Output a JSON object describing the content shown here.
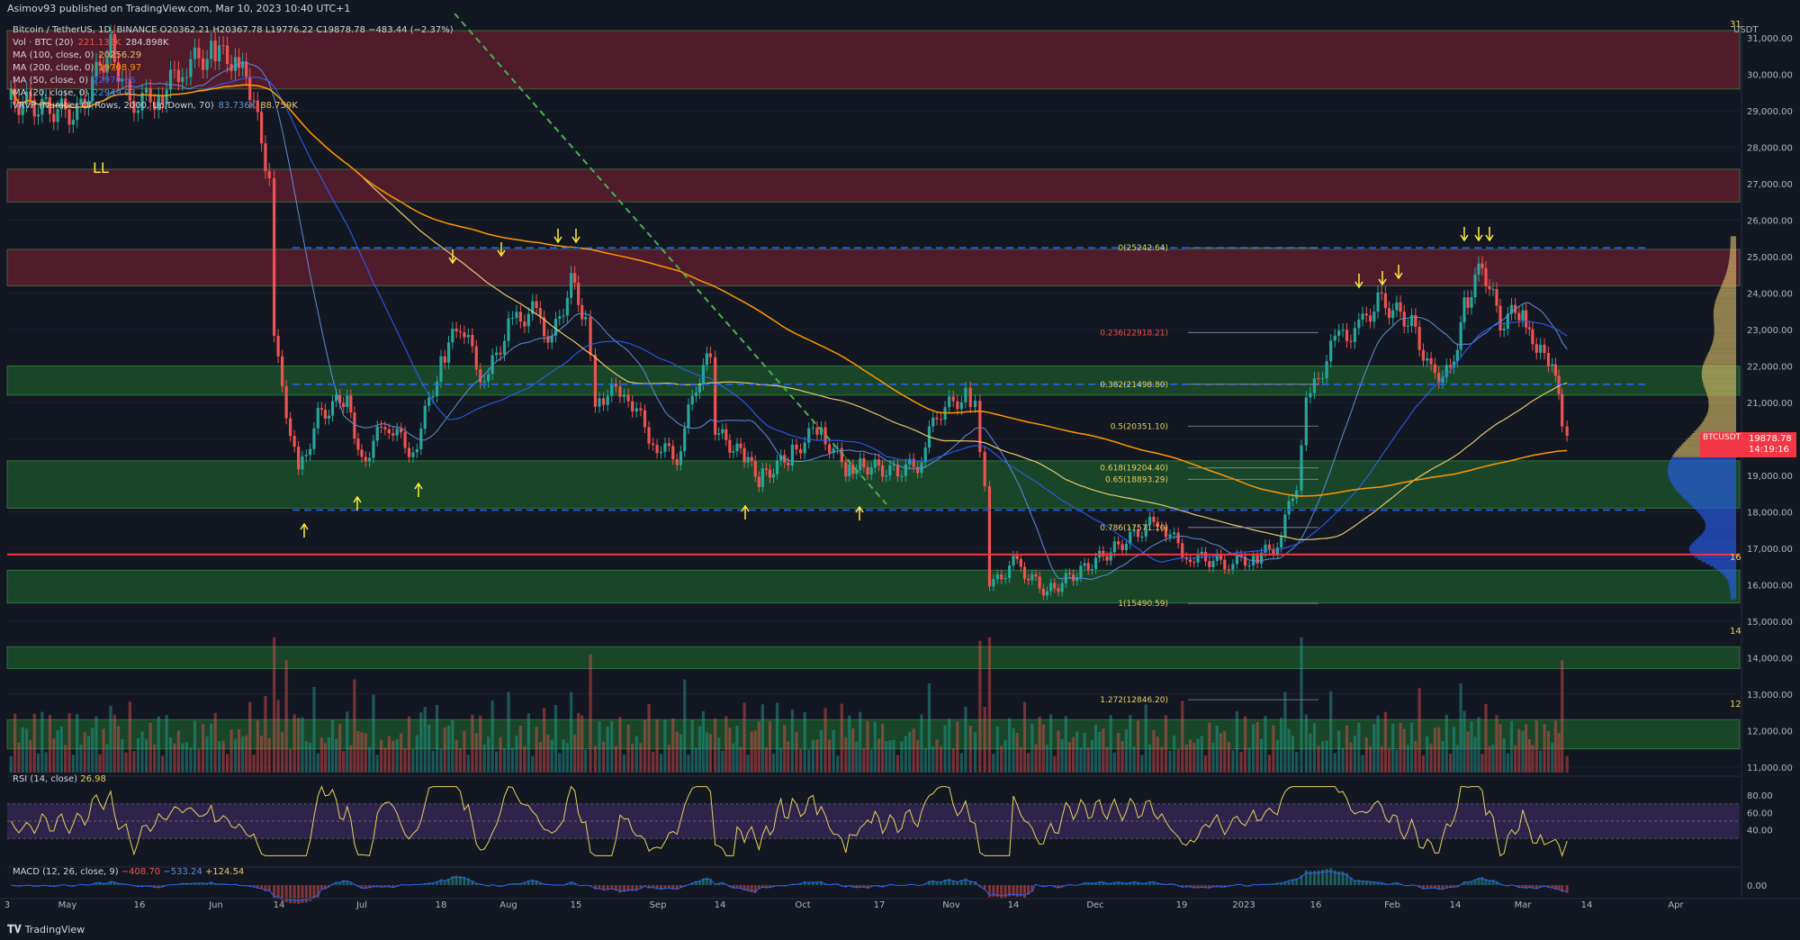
{
  "header": {
    "publisher": "Asimov93 published on TradingView.com, Mar 10, 2023 10:40 UTC+1"
  },
  "legend": {
    "symbol_line": "Bitcoin / TetherUS, 1D, BINANCE  O20362.21  H20367.78  L19776.22  C19878.78  −483.44 (−2.37%)",
    "vol": {
      "label": "Vol · BTC (20)",
      "v1": "221.133K",
      "v2": "284.898K"
    },
    "ma100": {
      "label": "MA (100, close, 0)",
      "value": "20256.29"
    },
    "ma200": {
      "label": "MA (200, close, 0)",
      "value": "19708.97"
    },
    "ma50": {
      "label": "MA (50, close, 0)",
      "value": "22970.66"
    },
    "ma20": {
      "label": "MA (20, close, 0)",
      "value": "22949.93"
    },
    "vrvp": {
      "label": "VRVP (Number Of Rows, 2000, Up/Down, 70)",
      "v1": "83.736K",
      "v2": "88.759K"
    }
  },
  "rsi": {
    "label": "RSI (14, close)",
    "value": "26.98"
  },
  "macd": {
    "label": "MACD (12, 26, close, 9)",
    "v1": "−408.70",
    "v2": "−533.24",
    "v3": "+124.54"
  },
  "price_tag": {
    "symbol": "BTCUSDT",
    "price": "19878.78",
    "countdown": "14:19:16"
  },
  "price_unit": "USDT",
  "footer": {
    "brand": "TradingView"
  },
  "annotations": {
    "ll": "LL",
    "fib": [
      {
        "label": "0(25242.64)",
        "price": 25242.64
      },
      {
        "label": "0.236(22918.21)",
        "price": 22918.21
      },
      {
        "label": "0.382(21498.80)",
        "price": 21498.8
      },
      {
        "label": "0.5(20351.10)",
        "price": 20351.1
      },
      {
        "label": "0.618(19204.40)",
        "price": 19204.4
      },
      {
        "label": "0.65(18893.29)",
        "price": 18893.29
      },
      {
        "label": "0.786(17571.10)",
        "price": 17571.1
      },
      {
        "label": "1(15490.59)",
        "price": 15490.59
      },
      {
        "label": "1.272(12846.20)",
        "price": 12846.2
      }
    ],
    "right_edge_labels": [
      "31",
      "16",
      "14",
      "12"
    ]
  },
  "colors": {
    "background": "#131722",
    "bull": "#26a69a",
    "bear": "#ef5350",
    "resistance_zone": "#5c1d2e",
    "support_zone": "#1b4d2a",
    "ma200": "#ff9800",
    "ma100": "#e6c86e",
    "ma50": "#2962ff",
    "ma20": "#5d8fd6",
    "rsi_line": "#e6d35c",
    "rsi_band": "#3b2a5c",
    "macd": "#2962ff",
    "signal": "#ff6d00",
    "arrows": "#ffeb3b",
    "price_line": "#f23645"
  },
  "chart_data": {
    "type": "candlestick",
    "symbol": "BTCUSDT",
    "exchange": "BINANCE",
    "timeframe": "1D",
    "ylim": [
      10800,
      31200
    ],
    "y_ticks": [
      11000,
      12000,
      13000,
      14000,
      15000,
      16000,
      17000,
      18000,
      19000,
      20000,
      21000,
      22000,
      23000,
      24000,
      25000,
      26000,
      27000,
      28000,
      29000,
      30000,
      31000
    ],
    "x_ticks": [
      "3",
      "May",
      "16",
      "Jun",
      "14",
      "Jul",
      "18",
      "Aug",
      "15",
      "Sep",
      "14",
      "Oct",
      "17",
      "Nov",
      "14",
      "Dec",
      "19",
      "2023",
      "16",
      "Feb",
      "14",
      "Mar",
      "14",
      "Apr"
    ],
    "close_path": [
      [
        "Apr 28",
        29300
      ],
      [
        "May 3",
        28900
      ],
      [
        "May 7",
        30000
      ],
      [
        "May 10",
        30800
      ],
      [
        "May 14",
        29200
      ],
      [
        "May 20",
        29400
      ],
      [
        "May 25",
        30200
      ],
      [
        "May 31",
        30600
      ],
      [
        "Jun 5",
        30400
      ],
      [
        "Jun 8",
        29600
      ],
      [
        "Jun 12",
        27200
      ],
      [
        "Jun 13",
        22600
      ],
      [
        "Jun 18",
        19000
      ],
      [
        "Jun 22",
        20600
      ],
      [
        "Jun 28",
        21200
      ],
      [
        "Jul 1",
        19300
      ],
      [
        "Jul 6",
        20500
      ],
      [
        "Jul 12",
        19600
      ],
      [
        "Jul 18",
        22100
      ],
      [
        "Jul 22",
        23200
      ],
      [
        "Jul 27",
        21500
      ],
      [
        "Aug 1",
        23100
      ],
      [
        "Aug 6",
        23500
      ],
      [
        "Aug 10",
        22700
      ],
      [
        "Aug 14",
        24300
      ],
      [
        "Aug 17",
        23300
      ],
      [
        "Aug 19",
        21100
      ],
      [
        "Aug 25",
        21400
      ],
      [
        "Aug 31",
        19900
      ],
      [
        "Sep 5",
        19500
      ],
      [
        "Sep 9",
        21500
      ],
      [
        "Sep 12",
        22300
      ],
      [
        "Sep 13",
        20200
      ],
      [
        "Sep 19",
        19500
      ],
      [
        "Sep 22",
        18900
      ],
      [
        "Sep 28",
        19500
      ],
      [
        "Oct 4",
        20300
      ],
      [
        "Oct 10",
        19200
      ],
      [
        "Oct 13",
        19300
      ],
      [
        "Oct 20",
        19100
      ],
      [
        "Oct 25",
        19300
      ],
      [
        "Oct 29",
        20700
      ],
      [
        "Nov 4",
        21200
      ],
      [
        "Nov 6",
        20900
      ],
      [
        "Nov 8",
        18500
      ],
      [
        "Nov 9",
        15900
      ],
      [
        "Nov 14",
        16600
      ],
      [
        "Nov 21",
        15800
      ],
      [
        "Nov 28",
        16400
      ],
      [
        "Dec 5",
        17000
      ],
      [
        "Dec 14",
        17800
      ],
      [
        "Dec 20",
        16800
      ],
      [
        "Dec 28",
        16600
      ],
      [
        "Jan 3",
        16700
      ],
      [
        "Jan 8",
        17100
      ],
      [
        "Jan 12",
        18800
      ],
      [
        "Jan 14",
        20900
      ],
      [
        "Jan 20",
        22700
      ],
      [
        "Jan 25",
        23000
      ],
      [
        "Jan 29",
        23800
      ],
      [
        "Feb 5",
        23200
      ],
      [
        "Feb 9",
        21800
      ],
      [
        "Feb 13",
        21800
      ],
      [
        "Feb 16",
        23600
      ],
      [
        "Feb 20",
        24800
      ],
      [
        "Feb 24",
        23200
      ],
      [
        "Mar 1",
        23600
      ],
      [
        "Mar 3",
        22400
      ],
      [
        "Mar 7",
        22200
      ],
      [
        "Mar 9",
        20400
      ],
      [
        "Mar 10",
        19878.78
      ]
    ],
    "last": {
      "open": 20362.21,
      "high": 20367.78,
      "low": 19776.22,
      "close": 19878.78,
      "change": -483.44,
      "change_pct": -2.37
    },
    "moving_averages": {
      "MA200_close": 19708.97,
      "MA100_close": 20256.29,
      "MA50_close": 22970.66,
      "MA20_close": 22949.93
    },
    "horizontal_levels": [
      25242.64,
      21498.8,
      18050,
      16830
    ],
    "zones": {
      "resistance": [
        [
          29600,
          31200
        ],
        [
          26500,
          27400
        ],
        [
          24200,
          25200
        ]
      ],
      "support": [
        [
          21200,
          22000
        ],
        [
          18100,
          19400
        ],
        [
          15500,
          16400
        ],
        [
          13700,
          14300
        ],
        [
          11500,
          12300
        ]
      ]
    },
    "rsi_range": [
      0,
      100
    ],
    "rsi_ticks": [
      40,
      60,
      80
    ],
    "rsi_last": 26.98,
    "macd_last": {
      "macd": -408.7,
      "signal": -533.24,
      "hist": 124.54
    },
    "volume_profile_poc": 19100
  }
}
